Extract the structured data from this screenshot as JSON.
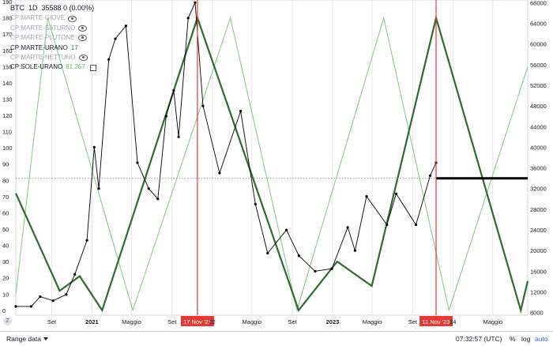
{
  "legend": {
    "symbol": "BTC",
    "interval": "1D",
    "price_info": "35588 0 (0.00%)",
    "rows": [
      {
        "label": "CP:MARTE-GIOVE",
        "value": "",
        "state": "muted",
        "icon": "eye-icon"
      },
      {
        "label": "CP:MARTE-SATURNO",
        "value": "",
        "state": "muted",
        "icon": "eye-icon"
      },
      {
        "label": "CP:MARTE-PLUTONE",
        "value": "",
        "state": "muted",
        "icon": "eye-icon"
      },
      {
        "label": "CP:MARTE-URANO",
        "value": "17",
        "state": "active",
        "icon": ""
      },
      {
        "label": "CP:MARTE-NETTUNO",
        "value": "",
        "state": "muted",
        "icon": "eye-icon"
      },
      {
        "label": "CP:SOLE-URANO",
        "value": "81.267",
        "state": "active",
        "icon": "square-icon"
      }
    ]
  },
  "bottom_bar": {
    "range_label": "Range data",
    "time": "07:32:57 (UTC)",
    "percent_label": "%",
    "log_label": "log",
    "auto_label": "auto",
    "z_label": "Z"
  },
  "chart_data": {
    "type": "line",
    "left_axis": {
      "ticks": [
        0,
        10,
        20,
        30,
        40,
        50,
        60,
        70,
        80,
        90,
        100,
        110,
        120,
        130,
        140,
        150,
        160,
        170,
        180,
        190
      ],
      "range": [
        -3,
        191
      ]
    },
    "right_axis": {
      "ticks": [
        8000,
        12000,
        16000,
        20000,
        24000,
        28000,
        32000,
        36000,
        40000,
        44000,
        48000,
        52000,
        56000,
        60000,
        64000,
        68000
      ],
      "range": [
        7500,
        68500
      ]
    },
    "x_axis": {
      "labels": [
        "Set",
        "2021",
        "Maggio",
        "Set",
        "17 Nov '21",
        "22",
        "Maggio",
        "Set",
        "2023",
        "Maggio",
        "Set",
        "11 Nov '23",
        "24",
        "Maggio"
      ],
      "highlighted": [
        "17 Nov '21",
        "11 Nov '23"
      ],
      "range": [
        "2020-05-15",
        "2024-08-15"
      ]
    },
    "vertical_markers": [
      "2021-11-17",
      "2023-11-11"
    ],
    "horizontal_level": 81.267,
    "series": [
      {
        "name": "CP:SOLE-URANO",
        "color": "#81c784",
        "points": [
          [
            "2020-05-15",
            10
          ],
          [
            "2020-08-20",
            180
          ],
          [
            "2021-05-05",
            0
          ],
          [
            "2022-02-25",
            180
          ],
          [
            "2022-09-15",
            0
          ],
          [
            "2023-06-05",
            180
          ],
          [
            "2023-12-20",
            0
          ],
          [
            "2024-08-15",
            150
          ]
        ]
      },
      {
        "name": "CP:MARTE-URANO",
        "color": "#2e6b2e",
        "points": [
          [
            "2020-05-15",
            72
          ],
          [
            "2020-09-25",
            12
          ],
          [
            "2020-11-25",
            21
          ],
          [
            "2021-02-01",
            0
          ],
          [
            "2021-11-17",
            180
          ],
          [
            "2022-09-20",
            0
          ],
          [
            "2023-01-15",
            30
          ],
          [
            "2023-04-30",
            15
          ],
          [
            "2023-11-11",
            180
          ],
          [
            "2024-07-25",
            0
          ],
          [
            "2024-08-15",
            18
          ]
        ]
      },
      {
        "name": "BTC",
        "color": "#000000",
        "axis": "right",
        "points": [
          [
            "2020-05-15",
            9200
          ],
          [
            "2020-07-01",
            9200
          ],
          [
            "2020-07-28",
            11100
          ],
          [
            "2020-09-05",
            10300
          ],
          [
            "2020-10-15",
            11500
          ],
          [
            "2020-11-10",
            15400
          ],
          [
            "2020-12-17",
            22000
          ],
          [
            "2021-01-08",
            40000
          ],
          [
            "2021-01-22",
            32000
          ],
          [
            "2021-02-21",
            57000
          ],
          [
            "2021-03-13",
            61000
          ],
          [
            "2021-04-14",
            63500
          ],
          [
            "2021-05-19",
            37000
          ],
          [
            "2021-06-22",
            32000
          ],
          [
            "2021-07-20",
            30000
          ],
          [
            "2021-08-14",
            46000
          ],
          [
            "2021-09-06",
            51000
          ],
          [
            "2021-09-21",
            42000
          ],
          [
            "2021-10-20",
            65000
          ],
          [
            "2021-11-10",
            68000
          ],
          [
            "2021-12-04",
            48000
          ],
          [
            "2022-01-23",
            35000
          ],
          [
            "2022-03-28",
            47000
          ],
          [
            "2022-05-12",
            29000
          ],
          [
            "2022-06-18",
            19500
          ],
          [
            "2022-08-14",
            24000
          ],
          [
            "2022-09-21",
            19000
          ],
          [
            "2022-11-09",
            16000
          ],
          [
            "2022-12-30",
            16500
          ],
          [
            "2023-02-16",
            24500
          ],
          [
            "2023-03-10",
            20000
          ],
          [
            "2023-04-14",
            30500
          ],
          [
            "2023-06-15",
            25000
          ],
          [
            "2023-07-13",
            31000
          ],
          [
            "2023-09-11",
            25000
          ],
          [
            "2023-10-24",
            34500
          ],
          [
            "2023-11-11",
            37000
          ]
        ]
      }
    ]
  }
}
